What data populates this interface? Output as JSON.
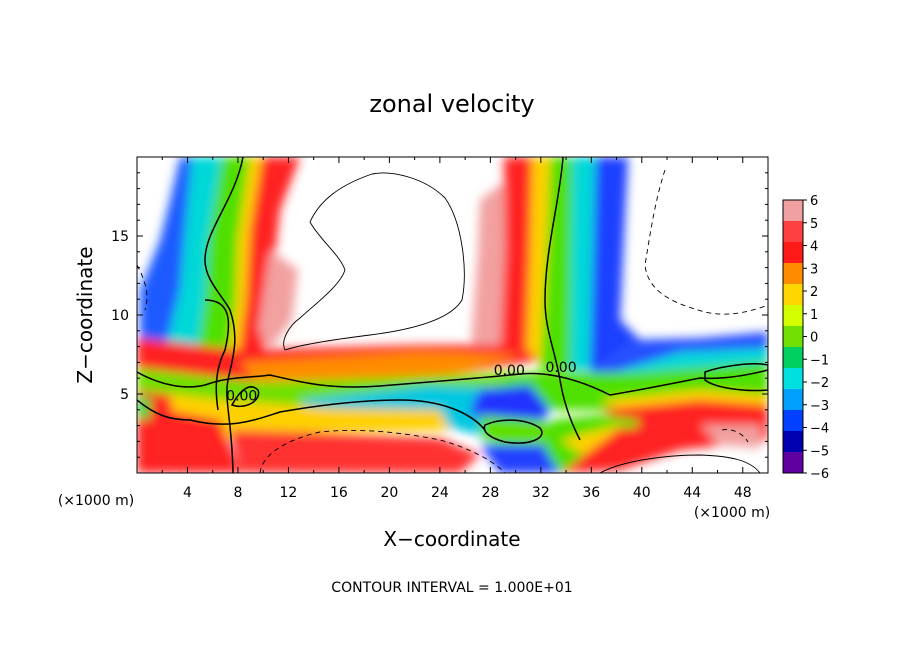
{
  "chart_data": {
    "type": "heatmap",
    "title": "zonal velocity",
    "xlabel": "X−coordinate",
    "ylabel": "Z−coordinate",
    "x_unit": "(×1000 m)",
    "y_unit": "(×1000 m)",
    "footer": "CONTOUR INTERVAL = 1.000E+01",
    "xlim": [
      0,
      50
    ],
    "ylim": [
      0,
      20
    ],
    "x_ticks": [
      4,
      8,
      12,
      16,
      20,
      24,
      28,
      32,
      36,
      40,
      44,
      48
    ],
    "y_ticks": [
      5,
      10,
      15
    ],
    "contour_labels": [
      {
        "text": "0.00",
        "x": 8.3,
        "y": 4.6
      },
      {
        "text": "0.00",
        "x": 29.5,
        "y": 6.2
      },
      {
        "text": "0.00",
        "x": 33.6,
        "y": 6.4
      }
    ],
    "colorbar": {
      "min": -6,
      "max": 6,
      "ticks": [
        "6",
        "5",
        "4",
        "3",
        "2",
        "1",
        "0",
        "−1",
        "−2",
        "−3",
        "−4",
        "−5",
        "−6"
      ],
      "colors": [
        "#f0a0a0",
        "#ff4040",
        "#ff1a1a",
        "#ff8c00",
        "#ffd700",
        "#d4ff00",
        "#70e000",
        "#00d060",
        "#00e0e0",
        "#00a0ff",
        "#0040ff",
        "#0000b0",
        "#6000a0"
      ]
    }
  }
}
